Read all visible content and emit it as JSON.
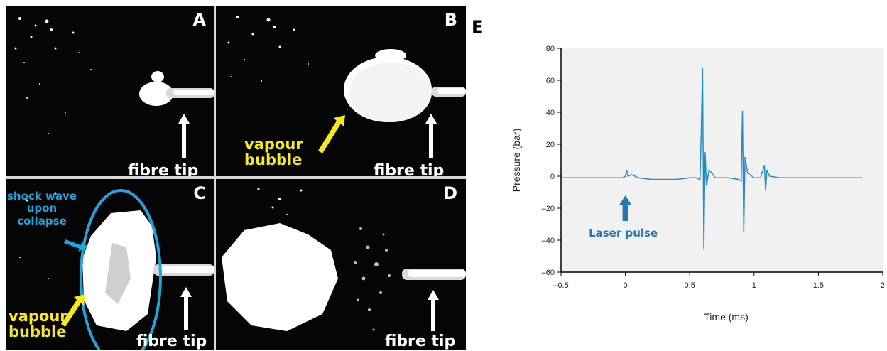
{
  "panels": [
    {
      "letter": "A",
      "labels": {
        "fibre": "fibre tip"
      }
    },
    {
      "letter": "B",
      "labels": {
        "vapour": "vapour\nbubble",
        "fibre": "fibre tip"
      }
    },
    {
      "letter": "C",
      "labels": {
        "shock": "shock wave\nupon\ncollapse",
        "vapour": "vapour\nbubble",
        "fibre": "fibre tip"
      }
    },
    {
      "letter": "D",
      "labels": {
        "fibre": "fibre tip"
      }
    }
  ],
  "colors": {
    "label_white": "#ffffff",
    "label_yellow": "#f7ea1a",
    "label_blue": "#1fa4db",
    "signal": "#2b88c4",
    "plot_bg": "#f1f1f1"
  },
  "chart_letter": "E",
  "chart_data": {
    "type": "line",
    "xlabel": "Time (ms)",
    "ylabel": "Pressure (bar)",
    "xlim": [
      -0.5,
      2
    ],
    "ylim": [
      -60,
      80
    ],
    "xticks": [
      -0.5,
      0,
      0.5,
      1,
      1.5,
      2
    ],
    "xtick_labels": [
      "–0.5",
      "0",
      "0.5",
      "1",
      "1.5",
      "2"
    ],
    "yticks": [
      -60,
      -40,
      -20,
      0,
      20,
      40,
      60,
      80
    ],
    "ytick_labels": [
      "–60",
      "–40",
      "–20",
      "0",
      "20",
      "40",
      "60",
      "80"
    ],
    "grid": false,
    "series": [
      {
        "x": [
          -0.5,
          -0.1,
          -0.02,
          0,
          0.01,
          0.02,
          0.05,
          0.1,
          0.2,
          0.3,
          0.4,
          0.5,
          0.55,
          0.58,
          0.59,
          0.6,
          0.61,
          0.62,
          0.63,
          0.65,
          0.7,
          0.8,
          0.88,
          0.9,
          0.91,
          0.92,
          0.93,
          0.95,
          1.0,
          1.05,
          1.08,
          1.09,
          1.1,
          1.12,
          1.2,
          1.4,
          1.6,
          1.84
        ],
        "y": [
          -1,
          -1,
          -1,
          0,
          4,
          0,
          1,
          -1,
          -2,
          -2,
          -2,
          -1,
          -1,
          -2,
          28,
          68,
          -46,
          15,
          -6,
          4,
          -1,
          -1,
          -2,
          -3,
          41,
          -35,
          12,
          2,
          -1,
          -1,
          7,
          -9,
          4,
          0,
          -1,
          -1,
          -1,
          -1
        ]
      }
    ],
    "annotations": [
      {
        "text": "Laser pulse",
        "x": 0,
        "y": -12
      }
    ]
  }
}
